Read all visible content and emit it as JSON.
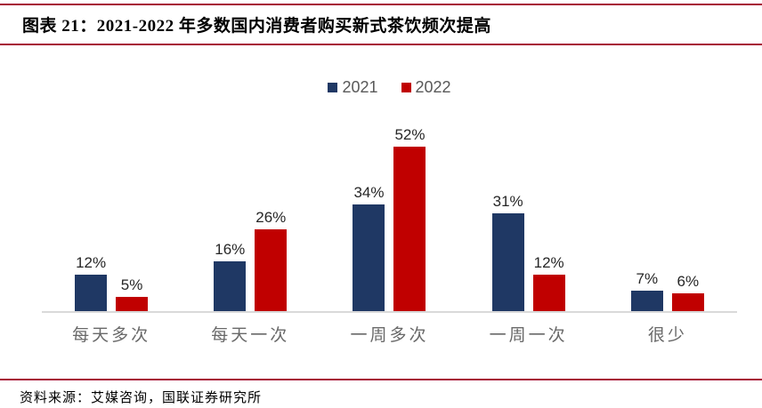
{
  "title": {
    "text": "图表 21：2021-2022 年多数国内消费者购买新式茶饮频次提高"
  },
  "footer": {
    "source": "资料来源：艾媒咨询，国联证券研究所"
  },
  "colors": {
    "accent_rule": "#A60F36",
    "series_2021": "#1F3864",
    "series_2022": "#C00000",
    "axis_line": "#D9D9D9",
    "category_label": "#696969",
    "legend_text": "#595959",
    "value_label": "#262626"
  },
  "chart_data": {
    "type": "bar",
    "title": "2021-2022 年多数国内消费者购买新式茶饮频次提高",
    "categories": [
      "每天多次",
      "每天一次",
      "一周多次",
      "一周一次",
      "很少"
    ],
    "series": [
      {
        "name": "2021",
        "color": "#1F3864",
        "values": [
          12,
          16,
          34,
          31,
          7
        ]
      },
      {
        "name": "2022",
        "color": "#C00000",
        "values": [
          5,
          26,
          52,
          12,
          6
        ]
      }
    ],
    "value_suffix": "%",
    "data_labels": true,
    "xlabel": "",
    "ylabel": "",
    "ylim": [
      0,
      55
    ],
    "grid": false,
    "yaxis_visible": false,
    "legend_position": "top"
  }
}
